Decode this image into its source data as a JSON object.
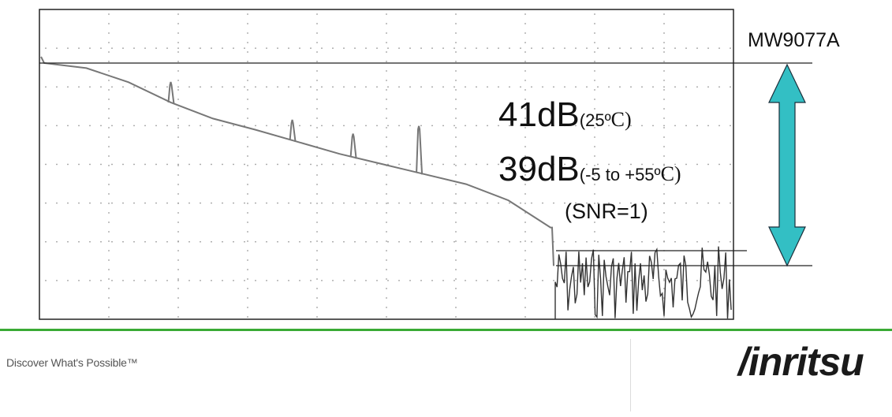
{
  "chart_data": {
    "type": "line",
    "title": "",
    "xlabel": "",
    "ylabel": "",
    "grid": true,
    "series": [
      {
        "values_db": [
          0,
          -0.5,
          -1.9,
          -3.9,
          -5.5,
          -6.6,
          -7.8,
          -9.0,
          -10.0,
          -11.0,
          -12.0,
          -13.6,
          -16.3
        ]
      }
    ],
    "reflection_events": [
      {
        "position_fraction": 0.25,
        "height_db": 3.5
      },
      {
        "position_fraction": 0.49,
        "height_db": 3.5
      },
      {
        "position_fraction": 0.61,
        "height_db": 4.0
      },
      {
        "position_fraction": 0.74,
        "height_db": 8.0
      }
    ],
    "noise_floor_db": -20.1,
    "dynamic_range_db": 41
  },
  "annotations": {
    "model": "MW9077A",
    "range_25c_value": "41dB",
    "range_25c_condition": "(25º",
    "range_25c_unit": "C)",
    "range_wide_value": "39dB",
    "range_wide_condition": "(-5 to +55º",
    "range_wide_unit": "C)",
    "snr_note": "(SNR=1)"
  },
  "footer": {
    "tagline": "Discover What's Possible™",
    "brand": "/inritsu",
    "accent_color": "#3aaa35"
  },
  "colors": {
    "trace": "#777777",
    "arrow_fill": "#33bfc4",
    "arrow_stroke": "#1a2e3a",
    "grid_dot": "#9a9a9a",
    "noise": "#333333"
  }
}
